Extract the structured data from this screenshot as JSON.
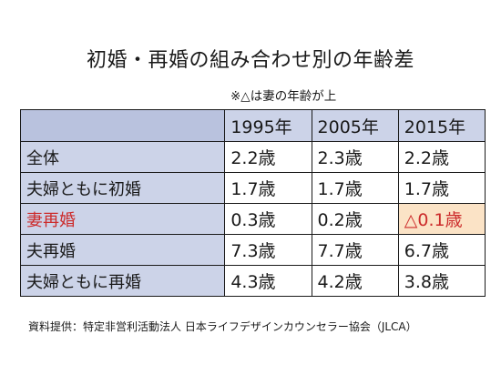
{
  "title": "初婚・再婚の組み合わせ別の年齢差",
  "note": "※△は妻の年齢が上",
  "table": {
    "corner": "",
    "columns": [
      "1995年",
      "2005年",
      "2015年"
    ],
    "rows": [
      {
        "label": "全体",
        "values": [
          "2.2歳",
          "2.3歳",
          "2.2歳"
        ]
      },
      {
        "label": "夫婦ともに初婚",
        "values": [
          "1.7歳",
          "1.7歳",
          "1.7歳"
        ]
      },
      {
        "label": "妻再婚",
        "values": [
          "0.3歳",
          "0.2歳",
          "△0.1歳"
        ]
      },
      {
        "label": "夫再婚",
        "values": [
          "7.3歳",
          "7.7歳",
          "6.7歳"
        ]
      },
      {
        "label": "夫婦ともに再婚",
        "values": [
          "4.3歳",
          "4.2歳",
          "3.8歳"
        ]
      }
    ]
  },
  "source": "資料提供：特定非営利活動法人 日本ライフデザインカウンセラー協会（JLCA）",
  "colors": {
    "header_bg": "#ccd3e8",
    "highlight_text": "#cc2b2b",
    "highlight_cell_bg": "#fbe3c6"
  }
}
